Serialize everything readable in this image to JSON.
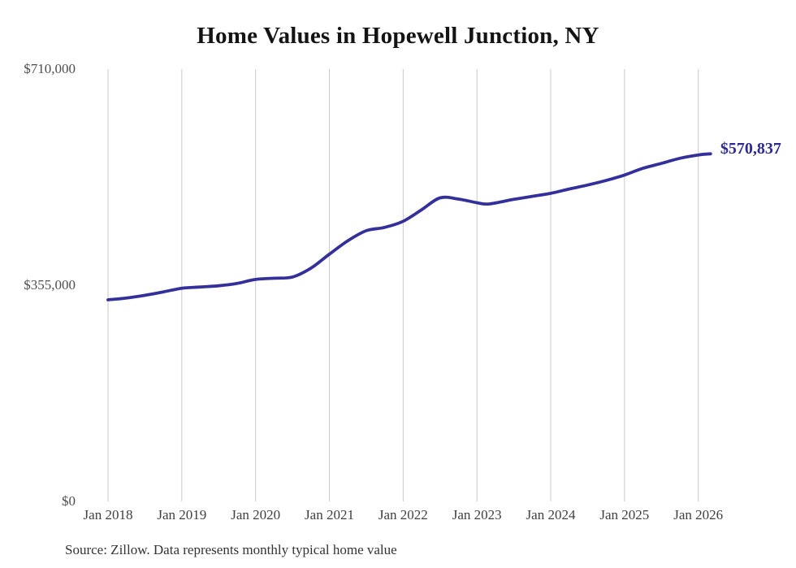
{
  "source_note": "Source: Zillow. Data represents monthly typical home value",
  "colors": {
    "line": "#34309B",
    "end_label": "#2C2992",
    "grid": "#C9C9C9",
    "title": "#141414",
    "y_axis_labels": "#4E4E4E",
    "x_axis_labels": "#404040",
    "source": "#333333",
    "background": "#FFFFFF"
  },
  "chart_data": {
    "type": "line",
    "title": "Home Values in Hopewell Junction, NY",
    "xlabel": "",
    "ylabel": "",
    "ylim": [
      0,
      710000
    ],
    "grid": "vertical-only",
    "legend": "none",
    "y_ticks": [
      {
        "label": "$710,000",
        "value": 710000
      },
      {
        "label": "$355,000",
        "value": 355000
      },
      {
        "label": "$0",
        "value": 0
      }
    ],
    "x_ticks": [
      {
        "label": "Jan 2018",
        "date": "2018-01"
      },
      {
        "label": "Jan 2019",
        "date": "2019-01"
      },
      {
        "label": "Jan 2020",
        "date": "2020-01"
      },
      {
        "label": "Jan 2021",
        "date": "2021-01"
      },
      {
        "label": "Jan 2022",
        "date": "2022-01"
      },
      {
        "label": "Jan 2023",
        "date": "2023-01"
      },
      {
        "label": "Jan 2024",
        "date": "2024-01"
      },
      {
        "label": "Jan 2025",
        "date": "2025-01"
      },
      {
        "label": "Jan 2026",
        "date": "2026-01"
      }
    ],
    "series": [
      {
        "name": "home_value",
        "points": [
          [
            "2018-01",
            331000
          ],
          [
            "2018-04",
            334000
          ],
          [
            "2018-07",
            338500
          ],
          [
            "2018-10",
            344000
          ],
          [
            "2019-01",
            350000
          ],
          [
            "2019-04",
            352000
          ],
          [
            "2019-07",
            354000
          ],
          [
            "2019-10",
            358000
          ],
          [
            "2020-01",
            364500
          ],
          [
            "2020-04",
            366500
          ],
          [
            "2020-07",
            368500
          ],
          [
            "2020-10",
            383000
          ],
          [
            "2021-01",
            406000
          ],
          [
            "2021-04",
            428000
          ],
          [
            "2021-07",
            444500
          ],
          [
            "2021-10",
            450000
          ],
          [
            "2022-01",
            460000
          ],
          [
            "2022-04",
            479000
          ],
          [
            "2022-07",
            498500
          ],
          [
            "2022-10",
            496500
          ],
          [
            "2023-01",
            490500
          ],
          [
            "2023-03",
            488500
          ],
          [
            "2023-07",
            496000
          ],
          [
            "2023-10",
            501000
          ],
          [
            "2024-01",
            506000
          ],
          [
            "2024-04",
            513000
          ],
          [
            "2024-07",
            519500
          ],
          [
            "2024-10",
            527000
          ],
          [
            "2025-01",
            536000
          ],
          [
            "2025-04",
            547000
          ],
          [
            "2025-07",
            555000
          ],
          [
            "2025-10",
            563500
          ],
          [
            "2026-01",
            569000
          ],
          [
            "2026-03",
            570837
          ]
        ]
      }
    ],
    "end_annotation": {
      "label": "$570,837",
      "value": 570837,
      "date": "2026-03"
    }
  }
}
